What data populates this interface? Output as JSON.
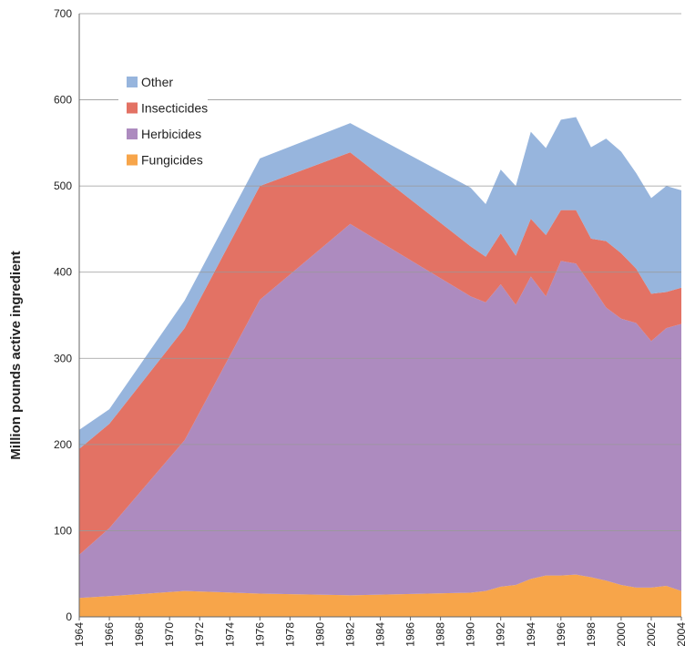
{
  "chart_data": {
    "type": "stacked-area",
    "y_label": "Million pounds active ingredient",
    "x": [
      1964,
      1966,
      1971,
      1976,
      1982,
      1990,
      1991,
      1992,
      1993,
      1994,
      1995,
      1996,
      1997,
      1998,
      1999,
      2000,
      2001,
      2002,
      2003,
      2004
    ],
    "series": [
      {
        "name": "Fungicides",
        "color": "#f7a54a",
        "values": [
          22,
          24,
          30,
          27,
          25,
          28,
          30,
          35,
          37,
          44,
          48,
          48,
          49,
          46,
          42,
          37,
          34,
          34,
          36,
          30
        ]
      },
      {
        "name": "Herbicides",
        "color": "#ad8bbf",
        "values": [
          50,
          79,
          175,
          341,
          431,
          344,
          335,
          351,
          325,
          351,
          324,
          365,
          361,
          339,
          317,
          309,
          307,
          286,
          299,
          310
        ]
      },
      {
        "name": "Insecticides",
        "color": "#e37264",
        "values": [
          123,
          121,
          130,
          132,
          83,
          58,
          53,
          59,
          57,
          67,
          71,
          59,
          62,
          54,
          77,
          76,
          63,
          55,
          42,
          42
        ]
      },
      {
        "name": "Other",
        "color": "#97b5dd",
        "values": [
          22,
          17,
          32,
          32,
          34,
          68,
          61,
          74,
          81,
          101,
          101,
          105,
          108,
          106,
          119,
          118,
          111,
          111,
          123,
          113
        ]
      }
    ],
    "xlim": [
      1964,
      2004
    ],
    "xticks": [
      1964,
      1966,
      1968,
      1970,
      1972,
      1974,
      1976,
      1978,
      1980,
      1982,
      1984,
      1986,
      1988,
      1990,
      1992,
      1994,
      1996,
      1998,
      2000,
      2002,
      2004
    ],
    "ylim": [
      0,
      700
    ],
    "yticks": [
      0,
      100,
      200,
      300,
      400,
      500,
      600,
      700
    ],
    "grid": true
  }
}
